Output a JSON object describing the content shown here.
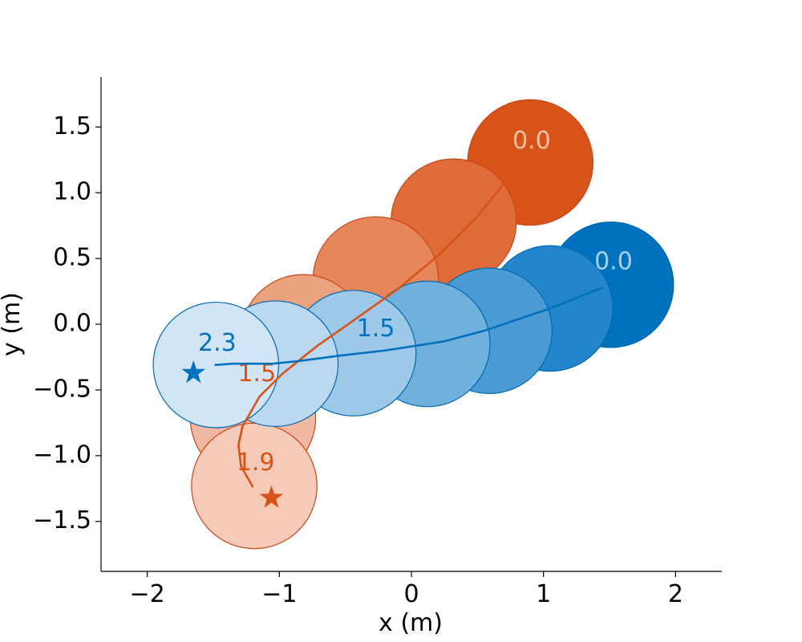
{
  "chart_data": {
    "type": "scatter",
    "title": "",
    "xlabel": "x (m)",
    "ylabel": "y (m)",
    "xlim": [
      -2.35,
      2.35
    ],
    "ylim": [
      -1.88,
      1.88
    ],
    "xticks": [
      -2,
      -1,
      0,
      1,
      2
    ],
    "yticks": [
      -1.5,
      -1.0,
      -0.5,
      0.0,
      0.5,
      1.0,
      1.5
    ],
    "xtick_labels": [
      "−2",
      "−1",
      "0",
      "1",
      "2"
    ],
    "ytick_labels": [
      "−1.5",
      "−1.0",
      "−0.5",
      "0.0",
      "0.5",
      "1.0",
      "1.5"
    ],
    "grid": false,
    "circle_radius": 0.475,
    "series": [
      {
        "color": "#D95319",
        "edge_color": "#C8461A",
        "path": [
          [
            0.7,
            1.07
          ],
          [
            0.5,
            0.82
          ],
          [
            0.2,
            0.52
          ],
          [
            -0.1,
            0.27
          ],
          [
            -0.45,
            0.02
          ],
          [
            -0.72,
            -0.17
          ],
          [
            -0.98,
            -0.38
          ],
          [
            -1.15,
            -0.55
          ],
          [
            -1.28,
            -0.78
          ],
          [
            -1.31,
            -0.92
          ],
          [
            -1.29,
            -1.08
          ],
          [
            -1.2,
            -1.24
          ]
        ],
        "circles": [
          {
            "center": [
              0.9,
              1.23
            ],
            "fill": "#D95319"
          },
          {
            "center": [
              0.32,
              0.78
            ],
            "fill": "#DF6B38"
          },
          {
            "center": [
              -0.27,
              0.34
            ],
            "fill": "#E5875A"
          },
          {
            "center": [
              -0.82,
              -0.1
            ],
            "fill": "#EBA27F"
          },
          {
            "center": [
              -1.2,
              -0.71
            ],
            "fill": "#F0B8A0"
          },
          {
            "center": [
              -1.19,
              -1.23
            ],
            "fill": "#F5CAB8"
          }
        ],
        "time_labels": [
          {
            "text": "0.0",
            "at": [
              0.91,
              1.39
            ],
            "color": "#F3C3A8"
          },
          {
            "text": "1.5",
            "at": [
              -1.17,
              -0.38
            ],
            "color": "#D95319"
          },
          {
            "text": "1.9",
            "at": [
              -1.18,
              -1.06
            ],
            "color": "#D95319"
          }
        ],
        "goal": [
          -1.06,
          -1.32
        ]
      },
      {
        "color": "#0072BD",
        "edge_color": "#0068B2",
        "path": [
          [
            1.45,
            0.28
          ],
          [
            1.05,
            0.12
          ],
          [
            0.55,
            -0.05
          ],
          [
            0.25,
            -0.13
          ],
          [
            -0.2,
            -0.2
          ],
          [
            -0.55,
            -0.24
          ],
          [
            -0.85,
            -0.28
          ],
          [
            -1.05,
            -0.3
          ],
          [
            -1.35,
            -0.3
          ],
          [
            -1.49,
            -0.31
          ]
        ],
        "circles": [
          {
            "center": [
              1.51,
              0.3
            ],
            "fill": "#0072BD"
          },
          {
            "center": [
              1.05,
              0.12
            ],
            "fill": "#2585CB"
          },
          {
            "center": [
              0.59,
              -0.05
            ],
            "fill": "#4A9AD3"
          },
          {
            "center": [
              0.12,
              -0.15
            ],
            "fill": "#70B0DC"
          },
          {
            "center": [
              -0.44,
              -0.22
            ],
            "fill": "#9DC8E7"
          },
          {
            "center": [
              -1.03,
              -0.3
            ],
            "fill": "#BAD8EF"
          },
          {
            "center": [
              -1.48,
              -0.31
            ],
            "fill": "#D2E5F5"
          }
        ],
        "time_labels": [
          {
            "text": "0.0",
            "at": [
              1.53,
              0.47
            ],
            "color": "#A9CFEA"
          },
          {
            "text": "1.5",
            "at": [
              -0.27,
              -0.04
            ],
            "color": "#0072BD"
          },
          {
            "text": "2.3",
            "at": [
              -1.47,
              -0.15
            ],
            "color": "#0072BD"
          }
        ],
        "goal": [
          -1.65,
          -0.37
        ]
      }
    ]
  }
}
